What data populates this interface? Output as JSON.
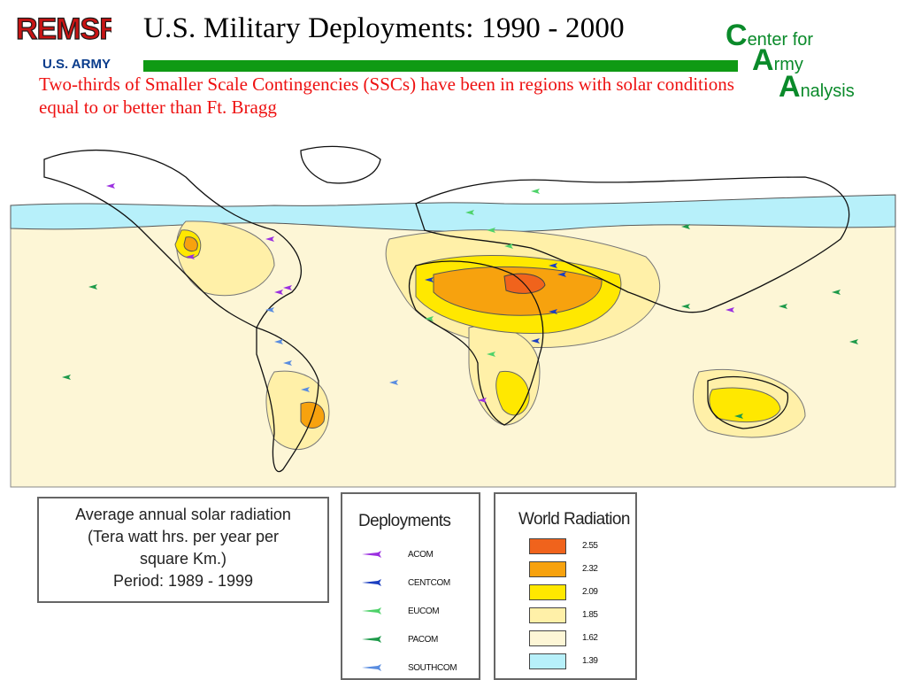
{
  "header": {
    "logo_text": "REMSR II",
    "title": "U.S. Military Deployments: 1990 - 2000",
    "army_label": "U.S. ARMY",
    "subtitle": "Two-thirds of Smaller Scale Contingencies (SSCs) have  been in regions with solar conditions equal to or better than Ft. Bragg"
  },
  "caa_logo": {
    "line1_initial": "C",
    "line1_rest": "enter for",
    "line2_initial": "A",
    "line2_rest": "rmy",
    "line3_initial": "A",
    "line3_rest": "nalysis",
    "color": "#0a8a2a"
  },
  "legend_text": {
    "line1": "Average annual solar radiation",
    "line2": "(Tera watt hrs. per year per",
    "line3": "square Km.)",
    "line4": "Period: 1989 - 1999"
  },
  "deployments": {
    "title": "Deployments",
    "items": [
      {
        "label": "ACOM",
        "color": "#9b30e0"
      },
      {
        "label": "CENTCOM",
        "color": "#1c3fc0"
      },
      {
        "label": "EUCOM",
        "color": "#4fd26a"
      },
      {
        "label": "PACOM",
        "color": "#1e9a4a"
      },
      {
        "label": "SOUTHCOM",
        "color": "#5a8de0"
      }
    ]
  },
  "world_radiation": {
    "title": "World Radiation",
    "items": [
      {
        "value": "2.55",
        "color": "#f0631c"
      },
      {
        "value": "2.32",
        "color": "#f7a20e"
      },
      {
        "value": "2.09",
        "color": "#ffe800"
      },
      {
        "value": "1.85",
        "color": "#fff0a8"
      },
      {
        "value": "1.62",
        "color": "#fdf6d6"
      },
      {
        "value": "1.39",
        "color": "#b7f0fa"
      }
    ]
  },
  "map": {
    "zone_colors": {
      "polar": "#b7f0fa",
      "base": "#fdf6d6",
      "light": "#fff0a8",
      "yellow": "#ffe800",
      "orange": "#f7a20e",
      "red": "#f0631c",
      "land_line": "#111111"
    }
  }
}
